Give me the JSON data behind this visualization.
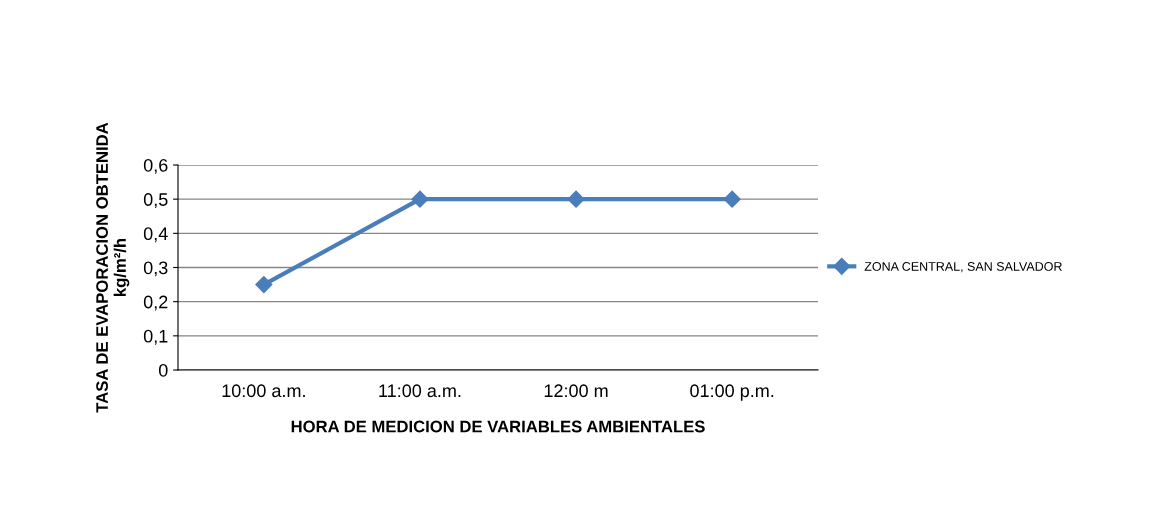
{
  "chart_data": {
    "type": "line",
    "xlabel": "HORA DE MEDICION DE VARIABLES AMBIENTALES",
    "ylabel": "TASA DE EVAPORACION OBTENIDA\nkg/m²/h",
    "categories": [
      "10:00 a.m.",
      "11:00 a.m.",
      "12:00 m",
      "01:00 p.m."
    ],
    "series": [
      {
        "name": "ZONA CENTRAL, SAN SALVADOR",
        "color": "#4a7ebb",
        "values": [
          0.25,
          0.5,
          0.5,
          0.5
        ]
      }
    ],
    "ylim": [
      0,
      0.6
    ],
    "yticks": [
      0,
      {
        "value": 0.1,
        "label": "0,1"
      },
      {
        "value": 0.2,
        "label": "0,2"
      },
      {
        "value": 0.3,
        "label": "0,3"
      },
      {
        "value": 0.4,
        "label": "0,4"
      },
      {
        "value": 0.5,
        "label": "0,5"
      },
      {
        "value": 0.6,
        "label": "0,6"
      }
    ],
    "grid": "y",
    "legend": "right",
    "marker": "diamond",
    "line_style": "solid"
  }
}
